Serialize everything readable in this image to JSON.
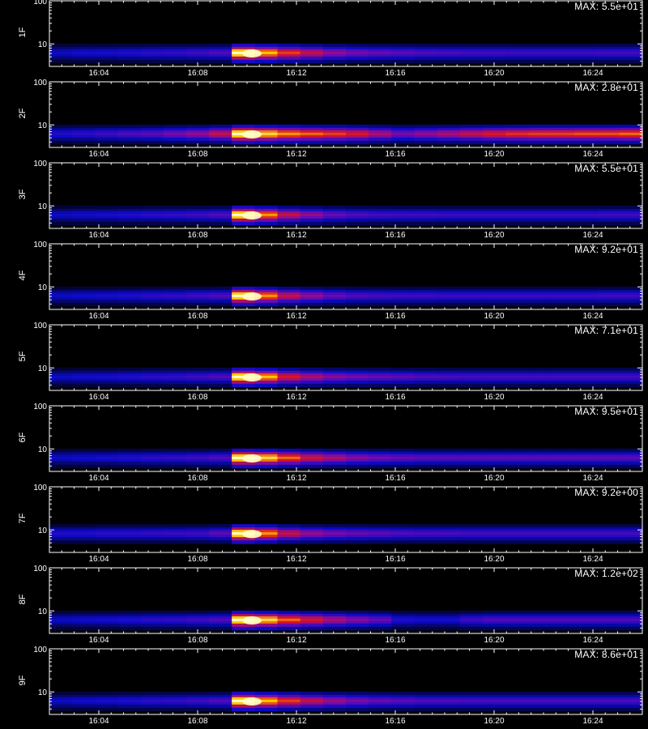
{
  "x_axis_title": "",
  "chart_data": [
    {
      "type": "heatmap",
      "label": "1F",
      "max_text": "MAX: 5.5e+01",
      "yscale": "log",
      "yticks": [
        "10",
        "100"
      ],
      "xticks": [
        "16:04",
        "16:08",
        "16:12",
        "16:16",
        "16:20",
        "16:24"
      ],
      "band_y": 6,
      "burst_time": "16:10",
      "intensity": [
        0.25,
        0.28,
        0.28,
        0.3,
        0.32,
        0.33,
        0.35,
        0.38,
        1.0,
        0.85,
        0.7,
        0.6,
        0.5,
        0.45,
        0.42,
        0.4,
        0.38,
        0.37,
        0.36,
        0.36,
        0.35,
        0.35,
        0.35,
        0.35,
        0.36,
        0.36
      ]
    },
    {
      "type": "heatmap",
      "label": "2F",
      "max_text": "MAX: 2.8e+01",
      "yscale": "log",
      "yticks": [
        "10",
        "100"
      ],
      "xticks": [
        "16:04",
        "16:08",
        "16:12",
        "16:16",
        "16:20",
        "16:24"
      ],
      "band_y": 6,
      "burst_time": "16:10",
      "intensity": [
        0.3,
        0.32,
        0.35,
        0.38,
        0.4,
        0.45,
        0.5,
        0.6,
        1.0,
        0.9,
        0.8,
        0.75,
        0.7,
        0.65,
        0.55,
        0.45,
        0.5,
        0.55,
        0.6,
        0.65,
        0.68,
        0.7,
        0.7,
        0.72,
        0.72,
        0.75
      ]
    },
    {
      "type": "heatmap",
      "label": "3F",
      "max_text": "MAX: 5.5e+01",
      "yscale": "log",
      "yticks": [
        "10",
        "100"
      ],
      "xticks": [
        "16:04",
        "16:08",
        "16:12",
        "16:16",
        "16:20",
        "16:24"
      ],
      "band_y": 6,
      "burst_time": "16:10",
      "intensity": [
        0.25,
        0.27,
        0.28,
        0.3,
        0.32,
        0.33,
        0.35,
        0.38,
        1.0,
        0.8,
        0.6,
        0.5,
        0.42,
        0.38,
        0.36,
        0.35,
        0.35,
        0.34,
        0.34,
        0.34,
        0.34,
        0.34,
        0.34,
        0.34,
        0.35,
        0.35
      ]
    },
    {
      "type": "heatmap",
      "label": "4F",
      "max_text": "MAX: 9.2e+01",
      "yscale": "log",
      "yticks": [
        "10",
        "100"
      ],
      "xticks": [
        "16:04",
        "16:08",
        "16:12",
        "16:16",
        "16:20",
        "16:24"
      ],
      "band_y": 6,
      "burst_time": "16:10",
      "intensity": [
        0.25,
        0.27,
        0.28,
        0.3,
        0.32,
        0.33,
        0.35,
        0.38,
        1.0,
        0.8,
        0.6,
        0.5,
        0.42,
        0.38,
        0.36,
        0.35,
        0.35,
        0.34,
        0.34,
        0.34,
        0.34,
        0.34,
        0.34,
        0.34,
        0.35,
        0.35
      ]
    },
    {
      "type": "heatmap",
      "label": "5F",
      "max_text": "MAX: 7.1e+01",
      "yscale": "log",
      "yticks": [
        "10",
        "100"
      ],
      "xticks": [
        "16:04",
        "16:08",
        "16:12",
        "16:16",
        "16:20",
        "16:24"
      ],
      "band_y": 6,
      "burst_time": "16:10",
      "intensity": [
        0.25,
        0.27,
        0.28,
        0.3,
        0.32,
        0.33,
        0.35,
        0.38,
        1.0,
        0.85,
        0.65,
        0.55,
        0.48,
        0.44,
        0.42,
        0.4,
        0.38,
        0.37,
        0.36,
        0.36,
        0.36,
        0.36,
        0.36,
        0.36,
        0.36,
        0.36
      ]
    },
    {
      "type": "heatmap",
      "label": "6F",
      "max_text": "MAX: 9.5e+01",
      "yscale": "log",
      "yticks": [
        "10",
        "100"
      ],
      "xticks": [
        "16:04",
        "16:08",
        "16:12",
        "16:16",
        "16:20",
        "16:24"
      ],
      "band_y": 6,
      "burst_time": "16:10",
      "intensity": [
        0.25,
        0.27,
        0.28,
        0.3,
        0.32,
        0.33,
        0.35,
        0.38,
        1.0,
        0.9,
        0.75,
        0.62,
        0.55,
        0.48,
        0.44,
        0.42,
        0.4,
        0.4,
        0.4,
        0.4,
        0.4,
        0.4,
        0.4,
        0.4,
        0.4,
        0.4
      ]
    },
    {
      "type": "heatmap",
      "label": "7F",
      "max_text": "MAX: 9.2e+00",
      "yscale": "log",
      "yticks": [
        "10",
        "100"
      ],
      "xticks": [
        "16:04",
        "16:08",
        "16:12",
        "16:16",
        "16:20",
        "16:24"
      ],
      "band_y": 8,
      "burst_time": "16:10",
      "intensity": [
        0.3,
        0.3,
        0.32,
        0.32,
        0.33,
        0.34,
        0.35,
        0.4,
        1.0,
        0.8,
        0.6,
        0.5,
        0.45,
        0.42,
        0.4,
        0.38,
        0.37,
        0.37,
        0.36,
        0.36,
        0.36,
        0.36,
        0.36,
        0.36,
        0.36,
        0.36
      ]
    },
    {
      "type": "heatmap",
      "label": "8F",
      "max_text": "MAX: 1.2e+02",
      "yscale": "log",
      "yticks": [
        "10",
        "100"
      ],
      "xticks": [
        "16:04",
        "16:08",
        "16:12",
        "16:16",
        "16:20",
        "16:24"
      ],
      "band_y": 6,
      "burst_time": "16:10",
      "intensity": [
        0.25,
        0.27,
        0.28,
        0.3,
        0.32,
        0.33,
        0.35,
        0.38,
        1.0,
        0.9,
        0.75,
        0.65,
        0.55,
        0.48,
        0.42,
        0.3,
        0.28,
        0.28,
        0.35,
        0.38,
        0.38,
        0.38,
        0.38,
        0.38,
        0.38,
        0.38
      ]
    },
    {
      "type": "heatmap",
      "label": "9F",
      "max_text": "MAX: 8.6e+01",
      "yscale": "log",
      "yticks": [
        "10",
        "100"
      ],
      "xticks": [
        "16:04",
        "16:08",
        "16:12",
        "16:16",
        "16:20",
        "16:24"
      ],
      "band_y": 6,
      "burst_time": "16:10",
      "intensity": [
        0.25,
        0.27,
        0.28,
        0.3,
        0.32,
        0.33,
        0.35,
        0.38,
        1.0,
        0.85,
        0.7,
        0.6,
        0.52,
        0.46,
        0.42,
        0.4,
        0.38,
        0.38,
        0.37,
        0.37,
        0.37,
        0.37,
        0.37,
        0.37,
        0.37,
        0.37
      ]
    }
  ]
}
